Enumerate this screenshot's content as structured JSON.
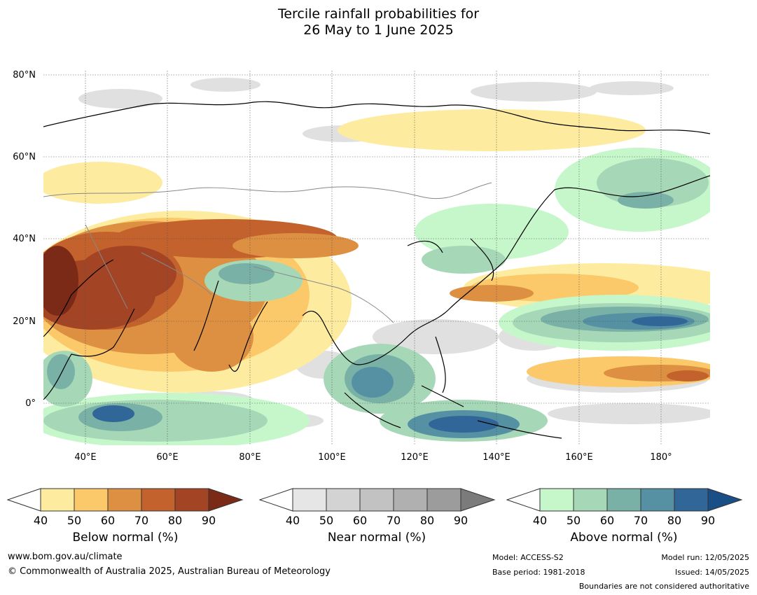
{
  "title_line1": "Tercile rainfall probabilities for",
  "title_line2": "26 May to 1 June 2025",
  "lat_labels": [
    "80°N",
    "60°N",
    "40°N",
    "20°N",
    "0°"
  ],
  "lon_labels": [
    "40°E",
    "60°E",
    "80°E",
    "100°E",
    "120°E",
    "140°E",
    "160°E",
    "180°"
  ],
  "colorbars": [
    {
      "name": "Below normal (%)",
      "ticks": [
        "40",
        "50",
        "60",
        "70",
        "80",
        "90"
      ],
      "colors": [
        "#ffffff",
        "#fdeca0",
        "#fbc96a",
        "#de9042",
        "#c3622d",
        "#a34425",
        "#7a2a16"
      ]
    },
    {
      "name": "Near normal (%)",
      "ticks": [
        "40",
        "50",
        "60",
        "70",
        "80",
        "90"
      ],
      "colors": [
        "#ffffff",
        "#e6e6e6",
        "#d3d3d3",
        "#c2c2c2",
        "#b0b0b0",
        "#9c9c9c",
        "#7b7b7b"
      ]
    },
    {
      "name": "Above normal (%)",
      "ticks": [
        "40",
        "50",
        "60",
        "70",
        "80",
        "90"
      ],
      "colors": [
        "#ffffff",
        "#c6f7cb",
        "#a6d8b8",
        "#79b1a6",
        "#5591a3",
        "#316698",
        "#1a4e86"
      ]
    }
  ],
  "footer": {
    "website": "www.bom.gov.au/climate",
    "copyright": "© Commonwealth of Australia 2025, Australian Bureau of Meteorology",
    "model": "Model: ACCESS-S2",
    "base_period": "Base period: 1981-2018",
    "model_run": "Model run: 12/05/2025",
    "issued": "Issued: 14/05/2025",
    "disclaimer": "Boundaries are not considered authoritative"
  }
}
